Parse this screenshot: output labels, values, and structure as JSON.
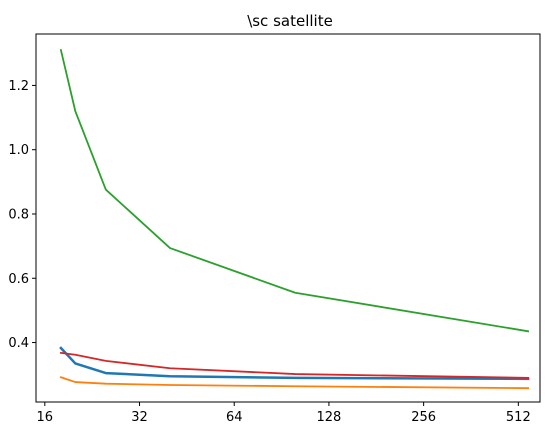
{
  "chart_data": {
    "type": "line",
    "title": "\\sc satellite",
    "xlabel": "",
    "ylabel": "",
    "xscale": "log2",
    "xlim": [
      15,
      600
    ],
    "ylim": [
      0.215,
      1.36
    ],
    "grid": false,
    "legend": "none",
    "x": [
      18,
      20,
      25,
      40,
      100,
      550
    ],
    "xticks": [
      16,
      32,
      64,
      128,
      256,
      512
    ],
    "xtick_labels": [
      "16",
      "32",
      "64",
      "128",
      "256",
      "512"
    ],
    "yticks": [
      0.4,
      0.6,
      0.8,
      1.0,
      1.2
    ],
    "ytick_labels": [
      "0.4",
      "0.6",
      "0.8",
      "1.0",
      "1.2"
    ],
    "series": [
      {
        "color": "#1f77b4",
        "width": 2.5,
        "values": [
          0.383,
          0.335,
          0.305,
          0.295,
          0.29,
          0.287
        ]
      },
      {
        "color": "#ff7f0e",
        "width": 1.8,
        "values": [
          0.292,
          0.277,
          0.272,
          0.268,
          0.264,
          0.258
        ]
      },
      {
        "color": "#2ca02c",
        "width": 1.8,
        "values": [
          1.31,
          1.12,
          0.876,
          0.694,
          0.555,
          0.435
        ]
      },
      {
        "color": "#d62728",
        "width": 1.8,
        "values": [
          0.368,
          0.362,
          0.343,
          0.32,
          0.302,
          0.29
        ]
      }
    ]
  }
}
